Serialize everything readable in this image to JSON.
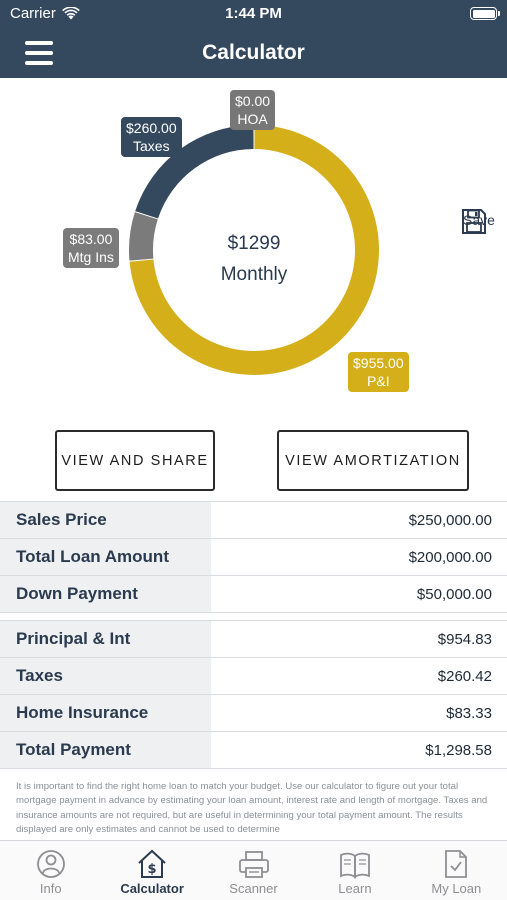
{
  "status_bar": {
    "carrier": "Carrier",
    "time": "1:44 PM"
  },
  "nav": {
    "title": "Calculator"
  },
  "save": {
    "label": "Save"
  },
  "chart_data": {
    "type": "pie",
    "donut": true,
    "center_text": [
      "$1299",
      "Monthly"
    ],
    "slices": [
      {
        "label": "HOA",
        "value": 0.0,
        "value_text": "$0.00",
        "color": "#777777"
      },
      {
        "label": "P&I",
        "value": 955.0,
        "value_text": "$955.00",
        "color": "#d4af1a"
      },
      {
        "label": "Mtg Ins",
        "value": 83.0,
        "value_text": "$83.00",
        "color": "#7b7b7b"
      },
      {
        "label": "Taxes",
        "value": 260.0,
        "value_text": "$260.00",
        "color": "#34495e"
      }
    ]
  },
  "buttons": {
    "view_share": "VIEW AND SHARE",
    "view_amortization": "VIEW AMORTIZATION"
  },
  "loan_table": [
    {
      "label": "Sales Price",
      "value": "$250,000.00"
    },
    {
      "label": "Total Loan Amount",
      "value": "$200,000.00"
    },
    {
      "label": "Down Payment",
      "value": "$50,000.00"
    }
  ],
  "payment_table": [
    {
      "label": "Principal & Int",
      "value": "$954.83"
    },
    {
      "label": "Taxes",
      "value": "$260.42"
    },
    {
      "label": "Home Insurance",
      "value": "$83.33"
    },
    {
      "label": "Total Payment",
      "value": "$1,298.58"
    }
  ],
  "disclaimer": "It is important to find the right home loan to match your budget. Use our calculator to figure out your total mortgage payment in advance by estimating your loan amount, interest rate and length of mortgage. Taxes and insurance amounts are not required, but are useful in determining your total payment amount. The results displayed are only estimates and cannot be used to determine",
  "tabs": [
    {
      "label": "Info",
      "icon": "info-person-icon",
      "active": false
    },
    {
      "label": "Calculator",
      "icon": "house-dollar-icon",
      "active": true
    },
    {
      "label": "Scanner",
      "icon": "printer-icon",
      "active": false
    },
    {
      "label": "Learn",
      "icon": "open-book-icon",
      "active": false
    },
    {
      "label": "My Loan",
      "icon": "document-check-icon",
      "active": false
    }
  ],
  "colors": {
    "header": "#34495e",
    "accent": "#d4af1a",
    "gray": "#7b7b7b"
  }
}
